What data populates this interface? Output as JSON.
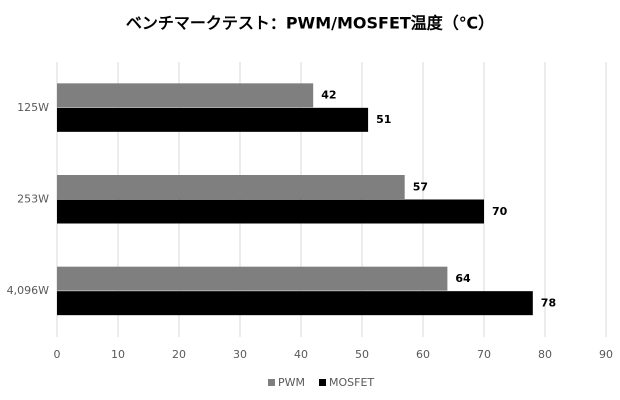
{
  "chart_data": {
    "type": "bar",
    "orientation": "horizontal",
    "title": "ベンチマークテスト：PWM/MOSFET温度（℃）",
    "categories": [
      "125W",
      "253W",
      "4,096W"
    ],
    "series": [
      {
        "name": "PWM",
        "color": "#7f7f7f",
        "values": [
          42,
          57,
          64
        ]
      },
      {
        "name": "MOSFET",
        "color": "#000000",
        "values": [
          51,
          70,
          78
        ]
      }
    ],
    "xlim": [
      0,
      90
    ],
    "xticks": [
      0,
      10,
      20,
      30,
      40,
      50,
      60,
      70,
      80,
      90
    ],
    "grid": true,
    "legend": "bottom"
  }
}
